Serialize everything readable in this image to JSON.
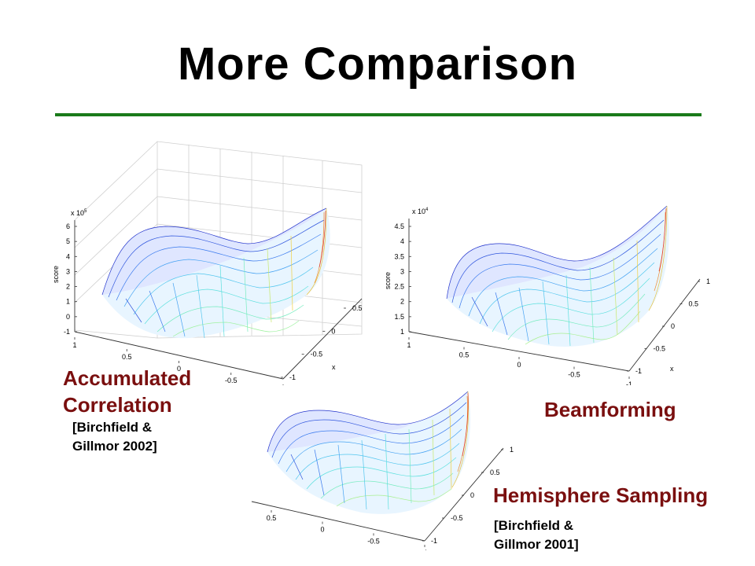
{
  "slide": {
    "title": "More Comparison",
    "rule_color": "#1a7a1a",
    "caption_color": "#7a0f0f"
  },
  "plots": {
    "accumulated": {
      "exponent": "x 10",
      "exp_sup": "5",
      "zlabel": "score",
      "xlabel": "x",
      "z_ticks": [
        "6",
        "5",
        "4",
        "3",
        "2",
        "1",
        "0",
        "-1"
      ],
      "front_ticks": [
        "1",
        "0.5",
        "0",
        "-0.5",
        "-1"
      ],
      "side_ticks": [
        "0.5",
        "0",
        "-0.5",
        "-1"
      ]
    },
    "beamforming": {
      "exponent": "x 10",
      "exp_sup": "4",
      "zlabel": "score",
      "xlabel": "x",
      "z_ticks": [
        "4.5",
        "4",
        "3.5",
        "3",
        "2.5",
        "2",
        "1.5",
        "1"
      ],
      "front_ticks": [
        "1",
        "0.5",
        "0",
        "-0.5",
        "-1"
      ],
      "side_ticks": [
        "1",
        "0.5",
        "0",
        "-0.5",
        "-1"
      ]
    },
    "hemisphere": {
      "front_ticks": [
        "0.5",
        "0",
        "-0.5",
        "-1"
      ],
      "side_ticks": [
        "1",
        "0.5",
        "0",
        "-0.5",
        "-1"
      ]
    }
  },
  "captions": {
    "accumulated": "Accumulated\nCorrelation",
    "accumulated_cite": "[Birchfield &\nGillmor 2002]",
    "beamforming": "Beamforming",
    "hemisphere": "Hemisphere Sampling",
    "hemisphere_cite": "[Birchfield &\nGillmor 2001]"
  }
}
